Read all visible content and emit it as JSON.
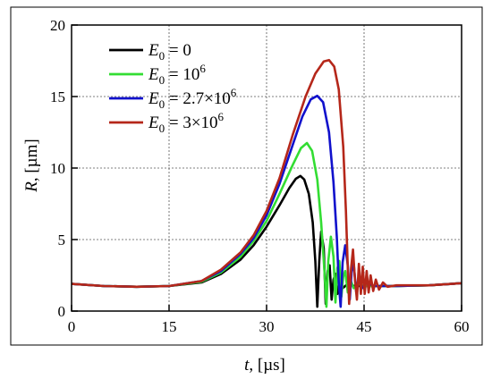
{
  "chart_data": {
    "type": "line",
    "xlabel": "t, [µs]",
    "ylabel": "R, [µm]",
    "xlim": [
      0,
      60
    ],
    "ylim": [
      0,
      20
    ],
    "xticks": [
      0,
      15,
      30,
      45,
      60
    ],
    "yticks": [
      0,
      5,
      10,
      15,
      20
    ],
    "x_tick_labels": [
      "0",
      "15",
      "30",
      "45",
      "60"
    ],
    "y_tick_labels": [
      "0",
      "5",
      "10",
      "15",
      "20"
    ],
    "grid": true,
    "legend_position": "top-left",
    "series": [
      {
        "name": "E0 = 0",
        "color": "#000000",
        "points": [
          [
            0,
            1.9
          ],
          [
            5,
            1.75
          ],
          [
            10,
            1.7
          ],
          [
            15,
            1.75
          ],
          [
            20,
            2.0
          ],
          [
            23,
            2.6
          ],
          [
            26,
            3.6
          ],
          [
            28,
            4.6
          ],
          [
            30,
            5.9
          ],
          [
            32,
            7.4
          ],
          [
            33.5,
            8.6
          ],
          [
            34.5,
            9.25
          ],
          [
            35.2,
            9.45
          ],
          [
            35.8,
            9.2
          ],
          [
            36.5,
            8.2
          ],
          [
            37.1,
            6.2
          ],
          [
            37.5,
            3.5
          ],
          [
            37.8,
            0.3
          ],
          [
            38.1,
            3.5
          ],
          [
            38.4,
            5.55
          ],
          [
            38.8,
            4.4
          ],
          [
            39.1,
            0.5
          ],
          [
            39.4,
            2.8
          ],
          [
            39.7,
            3.2
          ],
          [
            40.0,
            0.8
          ],
          [
            40.3,
            2.2
          ],
          [
            40.6,
            2.6
          ],
          [
            40.9,
            1.2
          ],
          [
            41.3,
            2.1
          ],
          [
            41.7,
            1.6
          ],
          [
            42.5,
            1.9
          ],
          [
            43.5,
            1.75
          ],
          [
            45,
            1.75
          ],
          [
            50,
            1.75
          ],
          [
            55,
            1.8
          ],
          [
            60,
            1.95
          ]
        ]
      },
      {
        "name": "E0 = 10^6",
        "color": "#33dd33",
        "points": [
          [
            0,
            1.9
          ],
          [
            5,
            1.75
          ],
          [
            10,
            1.7
          ],
          [
            15,
            1.75
          ],
          [
            20,
            2.05
          ],
          [
            23,
            2.7
          ],
          [
            26,
            3.8
          ],
          [
            28,
            4.9
          ],
          [
            30,
            6.3
          ],
          [
            32,
            8.2
          ],
          [
            34,
            10.2
          ],
          [
            35.3,
            11.4
          ],
          [
            36.2,
            11.75
          ],
          [
            37,
            11.2
          ],
          [
            37.8,
            9.2
          ],
          [
            38.4,
            6.2
          ],
          [
            38.9,
            2.8
          ],
          [
            39.2,
            0.3
          ],
          [
            39.5,
            3.5
          ],
          [
            39.9,
            5.2
          ],
          [
            40.3,
            3.8
          ],
          [
            40.6,
            0.6
          ],
          [
            40.9,
            3.0
          ],
          [
            41.2,
            3.5
          ],
          [
            41.5,
            1.0
          ],
          [
            41.8,
            2.4
          ],
          [
            42.1,
            2.8
          ],
          [
            42.5,
            1.3
          ],
          [
            42.9,
            2.2
          ],
          [
            43.4,
            1.6
          ],
          [
            44.2,
            1.9
          ],
          [
            45,
            1.75
          ],
          [
            50,
            1.75
          ],
          [
            55,
            1.8
          ],
          [
            60,
            1.95
          ]
        ]
      },
      {
        "name": "E0 = 2.7×10^6",
        "color": "#1111cc",
        "points": [
          [
            0,
            1.9
          ],
          [
            5,
            1.75
          ],
          [
            10,
            1.7
          ],
          [
            15,
            1.75
          ],
          [
            20,
            2.1
          ],
          [
            23,
            2.8
          ],
          [
            26,
            4.0
          ],
          [
            28,
            5.1
          ],
          [
            30,
            6.7
          ],
          [
            32,
            8.9
          ],
          [
            34,
            11.6
          ],
          [
            35.5,
            13.6
          ],
          [
            36.8,
            14.8
          ],
          [
            37.8,
            15.05
          ],
          [
            38.7,
            14.6
          ],
          [
            39.6,
            12.5
          ],
          [
            40.3,
            9.0
          ],
          [
            40.8,
            5.2
          ],
          [
            41.1,
            2.0
          ],
          [
            41.4,
            0.3
          ],
          [
            41.7,
            3.4
          ],
          [
            42.1,
            4.6
          ],
          [
            42.5,
            3.2
          ],
          [
            42.8,
            0.8
          ],
          [
            43.1,
            2.8
          ],
          [
            43.4,
            3.3
          ],
          [
            43.8,
            1.3
          ],
          [
            44.2,
            2.5
          ],
          [
            44.7,
            1.6
          ],
          [
            45.4,
            2.0
          ],
          [
            46.5,
            1.75
          ],
          [
            50,
            1.75
          ],
          [
            55,
            1.8
          ],
          [
            60,
            1.95
          ]
        ]
      },
      {
        "name": "E0 = 3×10^6",
        "color": "#b5271a",
        "points": [
          [
            0,
            1.9
          ],
          [
            5,
            1.75
          ],
          [
            10,
            1.7
          ],
          [
            15,
            1.75
          ],
          [
            20,
            2.1
          ],
          [
            23,
            2.9
          ],
          [
            26,
            4.1
          ],
          [
            28,
            5.3
          ],
          [
            30,
            7.0
          ],
          [
            32,
            9.3
          ],
          [
            34,
            12.3
          ],
          [
            36,
            15.0
          ],
          [
            37.5,
            16.6
          ],
          [
            38.8,
            17.45
          ],
          [
            39.6,
            17.55
          ],
          [
            40.4,
            17.1
          ],
          [
            41.1,
            15.5
          ],
          [
            41.8,
            11.5
          ],
          [
            42.2,
            7.0
          ],
          [
            42.5,
            3.0
          ],
          [
            42.7,
            0.5
          ],
          [
            43.0,
            3.0
          ],
          [
            43.3,
            4.3
          ],
          [
            43.6,
            2.2
          ],
          [
            43.9,
            0.8
          ],
          [
            44.2,
            3.3
          ],
          [
            44.5,
            1.2
          ],
          [
            44.8,
            3.1
          ],
          [
            45.1,
            1.2
          ],
          [
            45.4,
            2.8
          ],
          [
            45.7,
            1.3
          ],
          [
            46.0,
            2.5
          ],
          [
            46.4,
            1.4
          ],
          [
            46.8,
            2.2
          ],
          [
            47.3,
            1.5
          ],
          [
            47.9,
            2.0
          ],
          [
            48.6,
            1.7
          ],
          [
            50,
            1.8
          ],
          [
            55,
            1.8
          ],
          [
            60,
            1.95
          ]
        ]
      }
    ]
  },
  "legend": {
    "e_symbol": "E",
    "e_subscript": "0",
    "equals": " = ",
    "entries": [
      {
        "value": "0",
        "sup": ""
      },
      {
        "value": "10",
        "sup": "6"
      },
      {
        "value": "2.7×10",
        "sup": "6"
      },
      {
        "value": "3×10",
        "sup": "6"
      }
    ]
  },
  "axes": {
    "x_var": "t",
    "x_unit": ", [µs]",
    "y_var": "R",
    "y_unit": ", [µm]"
  }
}
